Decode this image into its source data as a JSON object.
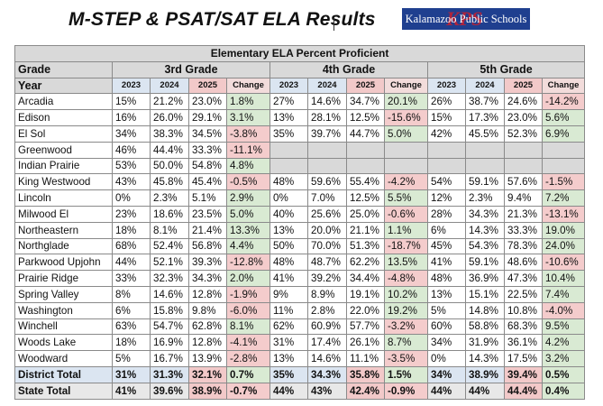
{
  "title": "M-STEP & PSAT/SAT ELA Results",
  "logo": {
    "text": "Kalamazoo Public Schools",
    "mark": "KPS"
  },
  "table": {
    "caption": "Elementary ELA Percent Proficient",
    "grade_label": "Grade",
    "year_label": "Year",
    "grades": [
      "3rd Grade",
      "4th Grade",
      "5th Grade"
    ],
    "years": [
      "2023",
      "2024",
      "2025",
      "Change"
    ],
    "rows": [
      {
        "school": "Arcadia",
        "g3": [
          "15%",
          "21.2%",
          "23.0%",
          "1.8%"
        ],
        "g4": [
          "27%",
          "14.6%",
          "34.7%",
          "20.1%"
        ],
        "g5": [
          "26%",
          "38.7%",
          "24.6%",
          "-14.2%"
        ]
      },
      {
        "school": "Edison",
        "g3": [
          "16%",
          "26.0%",
          "29.1%",
          "3.1%"
        ],
        "g4": [
          "13%",
          "28.1%",
          "12.5%",
          "-15.6%"
        ],
        "g5": [
          "15%",
          "17.3%",
          "23.0%",
          "5.6%"
        ]
      },
      {
        "school": "El Sol",
        "g3": [
          "34%",
          "38.3%",
          "34.5%",
          "-3.8%"
        ],
        "g4": [
          "35%",
          "39.7%",
          "44.7%",
          "5.0%"
        ],
        "g5": [
          "42%",
          "45.5%",
          "52.3%",
          "6.9%"
        ]
      },
      {
        "school": "Greenwood",
        "g3": [
          "46%",
          "44.4%",
          "33.3%",
          "-11.1%"
        ],
        "g4": null,
        "g5": null
      },
      {
        "school": "Indian Prairie",
        "g3": [
          "53%",
          "50.0%",
          "54.8%",
          "4.8%"
        ],
        "g4": null,
        "g5": null
      },
      {
        "school": "King Westwood",
        "g3": [
          "43%",
          "45.8%",
          "45.4%",
          "-0.5%"
        ],
        "g4": [
          "48%",
          "59.6%",
          "55.4%",
          "-4.2%"
        ],
        "g5": [
          "54%",
          "59.1%",
          "57.6%",
          "-1.5%"
        ]
      },
      {
        "school": "Lincoln",
        "g3": [
          "0%",
          "2.3%",
          "5.1%",
          "2.9%"
        ],
        "g4": [
          "0%",
          "7.0%",
          "12.5%",
          "5.5%"
        ],
        "g5": [
          "12%",
          "2.3%",
          "9.4%",
          "7.2%"
        ]
      },
      {
        "school": "Milwood El",
        "g3": [
          "23%",
          "18.6%",
          "23.5%",
          "5.0%"
        ],
        "g4": [
          "40%",
          "25.6%",
          "25.0%",
          "-0.6%"
        ],
        "g5": [
          "28%",
          "34.3%",
          "21.3%",
          "-13.1%"
        ]
      },
      {
        "school": "Northeastern",
        "g3": [
          "18%",
          "8.1%",
          "21.4%",
          "13.3%"
        ],
        "g4": [
          "13%",
          "20.0%",
          "21.1%",
          "1.1%"
        ],
        "g5": [
          "6%",
          "14.3%",
          "33.3%",
          "19.0%"
        ]
      },
      {
        "school": "Northglade",
        "g3": [
          "68%",
          "52.4%",
          "56.8%",
          "4.4%"
        ],
        "g4": [
          "50%",
          "70.0%",
          "51.3%",
          "-18.7%"
        ],
        "g5": [
          "45%",
          "54.3%",
          "78.3%",
          "24.0%"
        ]
      },
      {
        "school": "Parkwood Upjohn",
        "g3": [
          "44%",
          "52.1%",
          "39.3%",
          "-12.8%"
        ],
        "g4": [
          "48%",
          "48.7%",
          "62.2%",
          "13.5%"
        ],
        "g5": [
          "41%",
          "59.1%",
          "48.6%",
          "-10.6%"
        ]
      },
      {
        "school": "Prairie Ridge",
        "g3": [
          "33%",
          "32.3%",
          "34.3%",
          "2.0%"
        ],
        "g4": [
          "41%",
          "39.2%",
          "34.4%",
          "-4.8%"
        ],
        "g5": [
          "48%",
          "36.9%",
          "47.3%",
          "10.4%"
        ]
      },
      {
        "school": "Spring Valley",
        "g3": [
          "8%",
          "14.6%",
          "12.8%",
          "-1.9%"
        ],
        "g4": [
          "9%",
          "8.9%",
          "19.1%",
          "10.2%"
        ],
        "g5": [
          "13%",
          "15.1%",
          "22.5%",
          "7.4%"
        ]
      },
      {
        "school": "Washington",
        "g3": [
          "6%",
          "15.8%",
          "9.8%",
          "-6.0%"
        ],
        "g4": [
          "11%",
          "2.8%",
          "22.0%",
          "19.2%"
        ],
        "g5": [
          "5%",
          "14.8%",
          "10.8%",
          "-4.0%"
        ]
      },
      {
        "school": "Winchell",
        "g3": [
          "63%",
          "54.7%",
          "62.8%",
          "8.1%"
        ],
        "g4": [
          "62%",
          "60.9%",
          "57.7%",
          "-3.2%"
        ],
        "g5": [
          "60%",
          "58.8%",
          "68.3%",
          "9.5%"
        ]
      },
      {
        "school": "Woods Lake",
        "g3": [
          "18%",
          "16.9%",
          "12.8%",
          "-4.1%"
        ],
        "g4": [
          "31%",
          "17.4%",
          "26.1%",
          "8.7%"
        ],
        "g5": [
          "34%",
          "31.9%",
          "36.1%",
          "4.2%"
        ]
      },
      {
        "school": "Woodward",
        "g3": [
          "5%",
          "16.7%",
          "13.9%",
          "-2.8%"
        ],
        "g4": [
          "13%",
          "14.6%",
          "11.1%",
          "-3.5%"
        ],
        "g5": [
          "0%",
          "14.3%",
          "17.5%",
          "3.2%"
        ]
      }
    ],
    "district": {
      "school": "District Total",
      "g3": [
        "31%",
        "31.3%",
        "32.1%",
        "0.7%"
      ],
      "g4": [
        "35%",
        "34.3%",
        "35.8%",
        "1.5%"
      ],
      "g5": [
        "34%",
        "38.9%",
        "39.4%",
        "0.5%"
      ]
    },
    "state": {
      "school": "State Total",
      "g3": [
        "41%",
        "39.6%",
        "38.9%",
        "-0.7%"
      ],
      "g4": [
        "44%",
        "43%",
        "42.4%",
        "-0.9%"
      ],
      "g5": [
        "44%",
        "44%",
        "44.4%",
        "0.4%"
      ]
    }
  }
}
